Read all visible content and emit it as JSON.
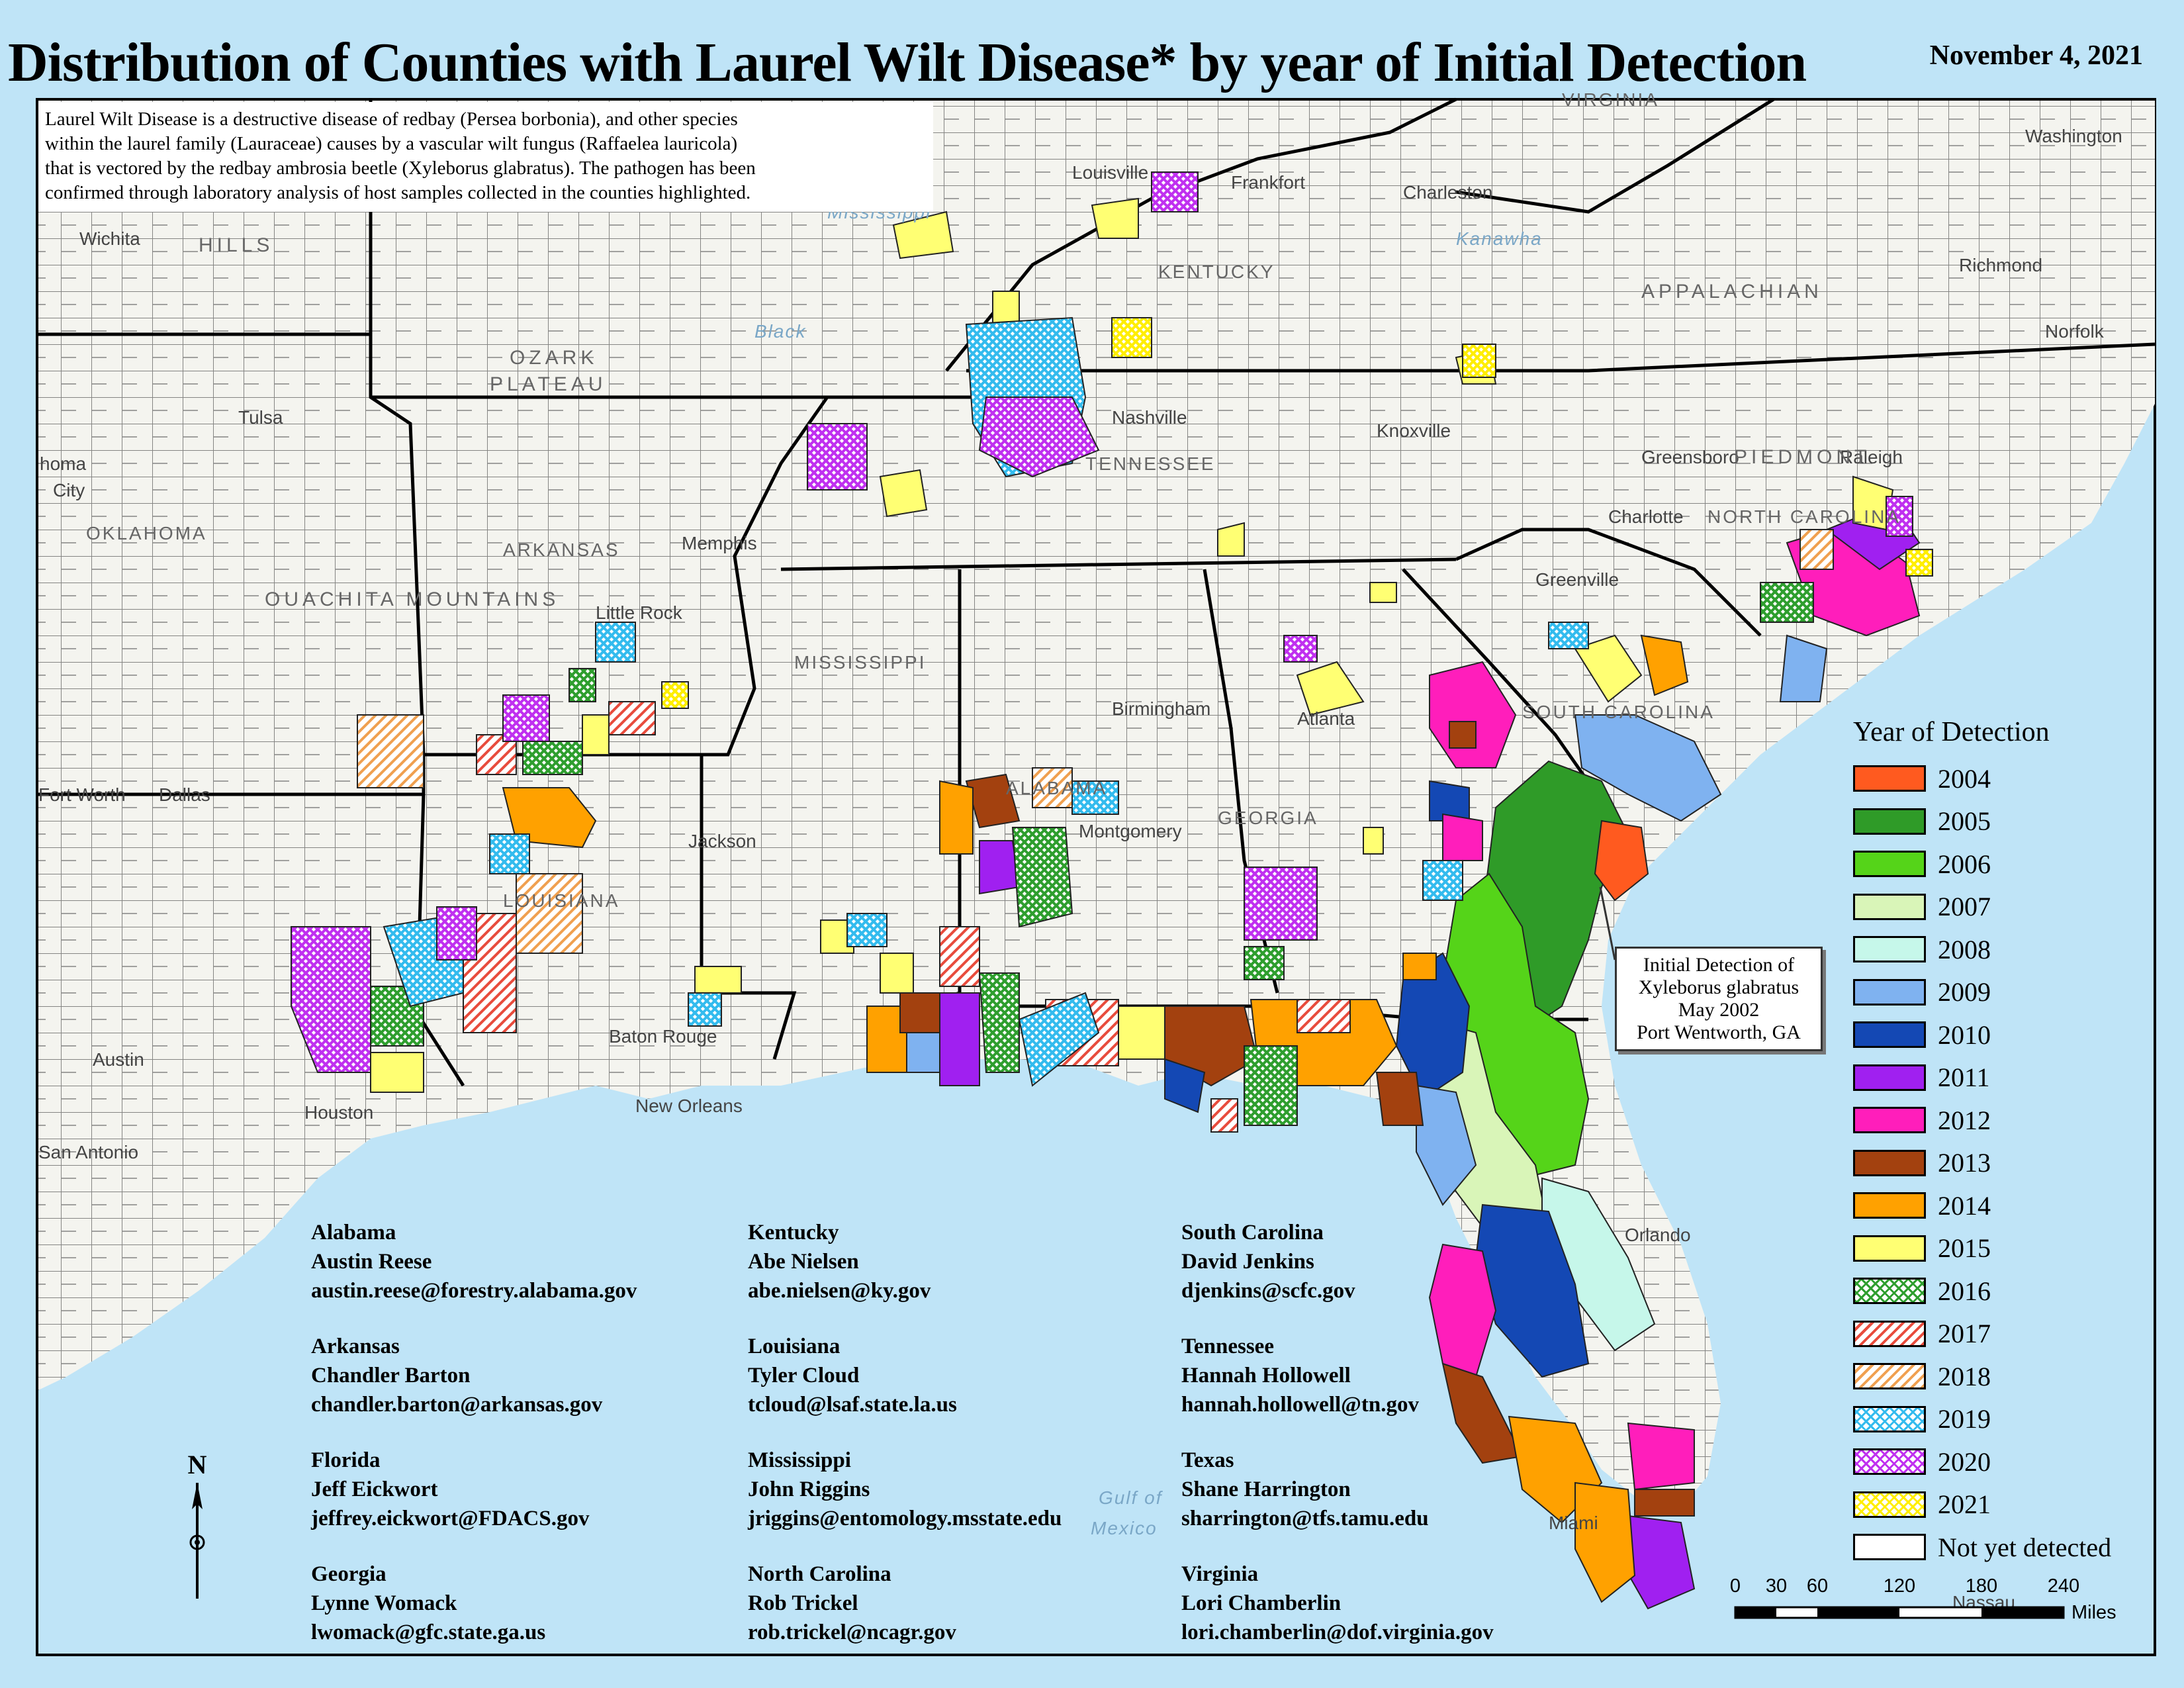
{
  "header": {
    "title": "Distribution of Counties with Laurel Wilt Disease* by year of Initial Detection",
    "date": "November 4, 2021"
  },
  "description": {
    "lines": [
      "Laurel Wilt Disease is a destructive disease of redbay (Persea borbonia), and other species",
      "within the laurel family (Lauraceae) causes by a vascular wilt fungus (Raffaelea lauricola)",
      "that is vectored by the redbay ambrosia beetle (Xyleborus glabratus). The pathogen has been",
      "confirmed through laboratory analysis of host samples collected in the counties highlighted."
    ]
  },
  "legend": {
    "title": "Year of Detection",
    "items": [
      {
        "label": "2004",
        "color": "#ff5a1f",
        "pattern": "solid"
      },
      {
        "label": "2005",
        "color": "#2f9b28",
        "pattern": "solid"
      },
      {
        "label": "2006",
        "color": "#55d419",
        "pattern": "solid"
      },
      {
        "label": "2007",
        "color": "#d9f5b8",
        "pattern": "solid"
      },
      {
        "label": "2008",
        "color": "#c6f7ea",
        "pattern": "solid"
      },
      {
        "label": "2009",
        "color": "#7fb2f0",
        "pattern": "solid"
      },
      {
        "label": "2010",
        "color": "#1448b4",
        "pattern": "solid"
      },
      {
        "label": "2011",
        "color": "#a020f0",
        "pattern": "solid"
      },
      {
        "label": "2012",
        "color": "#ff1ebb",
        "pattern": "solid"
      },
      {
        "label": "2013",
        "color": "#a3410f",
        "pattern": "solid"
      },
      {
        "label": "2014",
        "color": "#ffa100",
        "pattern": "solid"
      },
      {
        "label": "2015",
        "color": "#ffff73",
        "pattern": "solid"
      },
      {
        "label": "2016",
        "color": "#2e9e2e",
        "pattern": "crosshatch"
      },
      {
        "label": "2017",
        "color": "#e84c3d",
        "pattern": "diagonal"
      },
      {
        "label": "2018",
        "color": "#f0a050",
        "pattern": "diagonal"
      },
      {
        "label": "2019",
        "color": "#33bbee",
        "pattern": "crosshatch"
      },
      {
        "label": "2020",
        "color": "#c030f0",
        "pattern": "crosshatch"
      },
      {
        "label": "2021",
        "color": "#ffee00",
        "pattern": "crosshatch"
      },
      {
        "label": "Not yet detected",
        "color": "#ffffff",
        "pattern": "solid"
      }
    ]
  },
  "callout": {
    "lines": [
      "Initial Detection of",
      "Xyleborus glabratus",
      "May 2002",
      "Port Wentworth, GA"
    ]
  },
  "contacts": [
    {
      "state": "Alabama",
      "name": "Austin Reese",
      "email": "austin.reese@forestry.alabama.gov"
    },
    {
      "state": "Arkansas",
      "name": "Chandler Barton",
      "email": "chandler.barton@arkansas.gov"
    },
    {
      "state": "Florida",
      "name": "Jeff Eickwort",
      "email": "jeffrey.eickwort@FDACS.gov"
    },
    {
      "state": "Georgia",
      "name": "Lynne Womack",
      "email": "lwomack@gfc.state.ga.us"
    },
    {
      "state": "Kentucky",
      "name": "Abe Nielsen",
      "email": "abe.nielsen@ky.gov"
    },
    {
      "state": "Louisiana",
      "name": "Tyler Cloud",
      "email": "tcloud@lsaf.state.la.us"
    },
    {
      "state": "Mississippi",
      "name": "John Riggins",
      "email": "jriggins@entomology.msstate.edu"
    },
    {
      "state": "North Carolina",
      "name": "Rob Trickel",
      "email": "rob.trickel@ncagr.gov"
    },
    {
      "state": "South Carolina",
      "name": "David Jenkins",
      "email": "djenkins@scfc.gov"
    },
    {
      "state": "Tennessee",
      "name": "Hannah Hollowell",
      "email": "hannah.hollowell@tn.gov"
    },
    {
      "state": "Texas",
      "name": "Shane Harrington",
      "email": "sharrington@tfs.tamu.edu"
    },
    {
      "state": "Virginia",
      "name": "Lori Chamberlin",
      "email": "lori.chamberlin@dof.virginia.gov"
    }
  ],
  "scale": {
    "ticks": [
      "0",
      "30",
      "60",
      "120",
      "180",
      "240"
    ],
    "units": "Miles"
  },
  "north": "N",
  "basemap_labels": [
    {
      "text": "Wichita",
      "kind": "city"
    },
    {
      "text": "HILLS",
      "kind": "region"
    },
    {
      "text": "OZARK",
      "kind": "region"
    },
    {
      "text": "PLATEAU",
      "kind": "region"
    },
    {
      "text": "Tulsa",
      "kind": "city"
    },
    {
      "text": "homa",
      "kind": "city"
    },
    {
      "text": "City",
      "kind": "city"
    },
    {
      "text": "OKLAHOMA",
      "kind": "state"
    },
    {
      "text": "OUACHITA MOUNTAINS",
      "kind": "region"
    },
    {
      "text": "ARKANSAS",
      "kind": "state"
    },
    {
      "text": "Little Rock",
      "kind": "city"
    },
    {
      "text": "Memphis",
      "kind": "city"
    },
    {
      "text": "Louisville",
      "kind": "city"
    },
    {
      "text": "Frankfort",
      "kind": "city"
    },
    {
      "text": "Charleston",
      "kind": "city"
    },
    {
      "text": "KENTUCKY",
      "kind": "state"
    },
    {
      "text": "VIRGINIA",
      "kind": "state"
    },
    {
      "text": "Washington",
      "kind": "city"
    },
    {
      "text": "Richmond",
      "kind": "city"
    },
    {
      "text": "Norfolk",
      "kind": "city"
    },
    {
      "text": "Nashville",
      "kind": "city"
    },
    {
      "text": "TENNESSEE",
      "kind": "state"
    },
    {
      "text": "Knoxville",
      "kind": "city"
    },
    {
      "text": "Greensboro",
      "kind": "city"
    },
    {
      "text": "Raleigh",
      "kind": "city"
    },
    {
      "text": "NORTH CAROLINA",
      "kind": "state"
    },
    {
      "text": "Charlotte",
      "kind": "city"
    },
    {
      "text": "Greenville",
      "kind": "city"
    },
    {
      "text": "SOUTH CAROLINA",
      "kind": "state"
    },
    {
      "text": "MISSISSIPPI",
      "kind": "state"
    },
    {
      "text": "ALABAMA",
      "kind": "state"
    },
    {
      "text": "Birmingham",
      "kind": "city"
    },
    {
      "text": "Atlanta",
      "kind": "city"
    },
    {
      "text": "GEORGIA",
      "kind": "state"
    },
    {
      "text": "Montgomery",
      "kind": "city"
    },
    {
      "text": "Jackson",
      "kind": "city"
    },
    {
      "text": "Fort Worth",
      "kind": "city"
    },
    {
      "text": "Dallas",
      "kind": "city"
    },
    {
      "text": "LOUISIANA",
      "kind": "state"
    },
    {
      "text": "Baton Rouge",
      "kind": "city"
    },
    {
      "text": "New Orleans",
      "kind": "city"
    },
    {
      "text": "Austin",
      "kind": "city"
    },
    {
      "text": "Houston",
      "kind": "city"
    },
    {
      "text": "San Antonio",
      "kind": "city"
    },
    {
      "text": "Gulf of",
      "kind": "water"
    },
    {
      "text": "Mexico",
      "kind": "water"
    },
    {
      "text": "Miami",
      "kind": "city"
    },
    {
      "text": "Nassau",
      "kind": "city"
    },
    {
      "text": "Orlando",
      "kind": "city"
    },
    {
      "text": "APPALACHIAN",
      "kind": "region"
    },
    {
      "text": "PIEDMONT",
      "kind": "region"
    },
    {
      "text": "Black",
      "kind": "water"
    },
    {
      "text": "Kanawha",
      "kind": "water"
    },
    {
      "text": "Mississippi",
      "kind": "water"
    }
  ]
}
